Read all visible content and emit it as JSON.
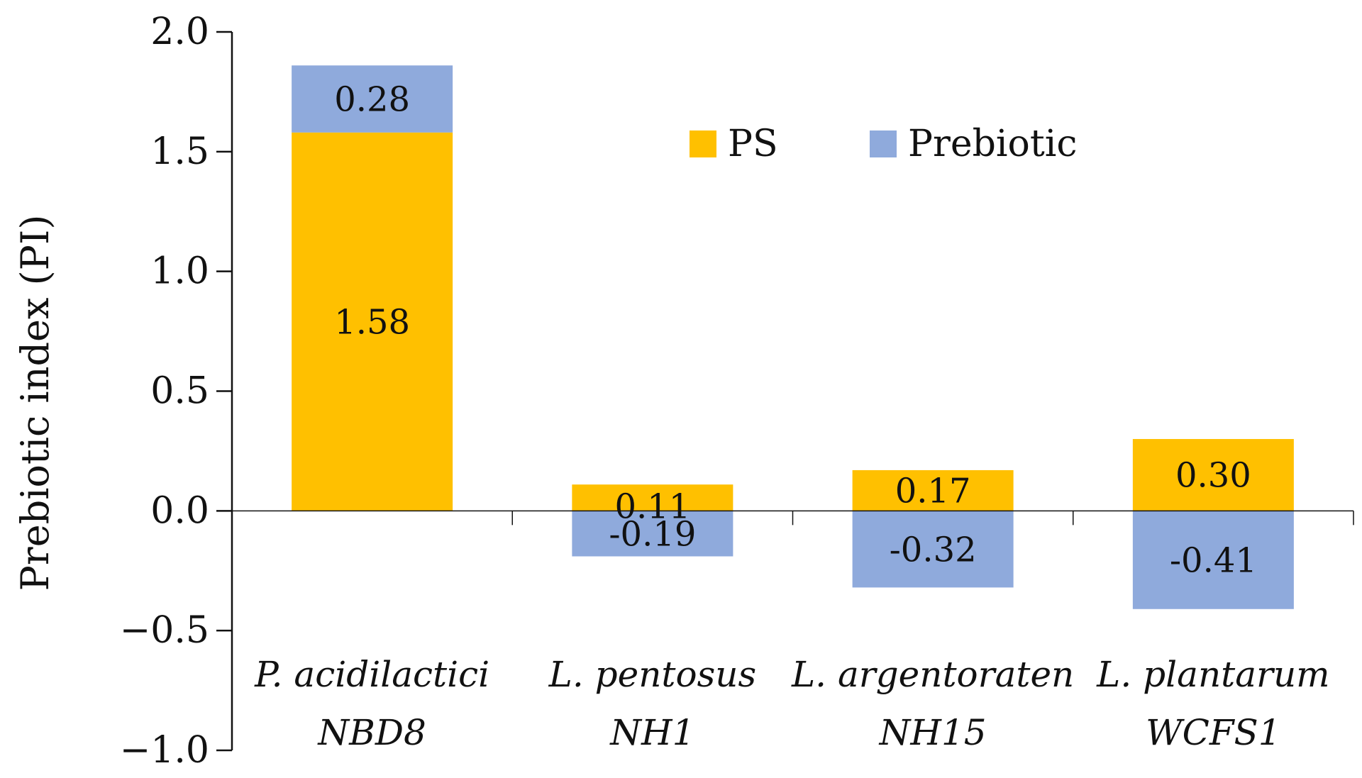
{
  "chart_data": {
    "type": "bar",
    "stacked": true,
    "categories": [
      [
        "P. acidilactici",
        "NBD8"
      ],
      [
        "L. pentosus",
        "NH1"
      ],
      [
        "L. argentoraten",
        "NH15"
      ],
      [
        "L. plantarum",
        "WCFS1"
      ]
    ],
    "series": [
      {
        "name": "PS",
        "color": "#FFC000",
        "values": [
          1.58,
          0.11,
          0.17,
          0.3
        ],
        "labels": [
          "1.58",
          "0.11",
          "0.17",
          "0.30"
        ]
      },
      {
        "name": "Prebiotic",
        "color": "#8FAADC",
        "values": [
          0.28,
          -0.19,
          -0.32,
          -0.41
        ],
        "labels": [
          "0.28",
          "-0.19",
          "-0.32",
          "-0.41"
        ]
      }
    ],
    "xlabel": "",
    "ylabel": "Prebiotic index (PI)",
    "ylim": [
      -1.0,
      2.0
    ],
    "yticks": [
      2.0,
      1.5,
      1.0,
      0.5,
      0.0,
      -0.5,
      -1.0
    ],
    "ytick_labels": [
      "2.0",
      "1.5",
      "1.0",
      "0.5",
      "0.0",
      "−0.5",
      "−1.0"
    ],
    "grid": false,
    "legend_position": "top-center"
  }
}
